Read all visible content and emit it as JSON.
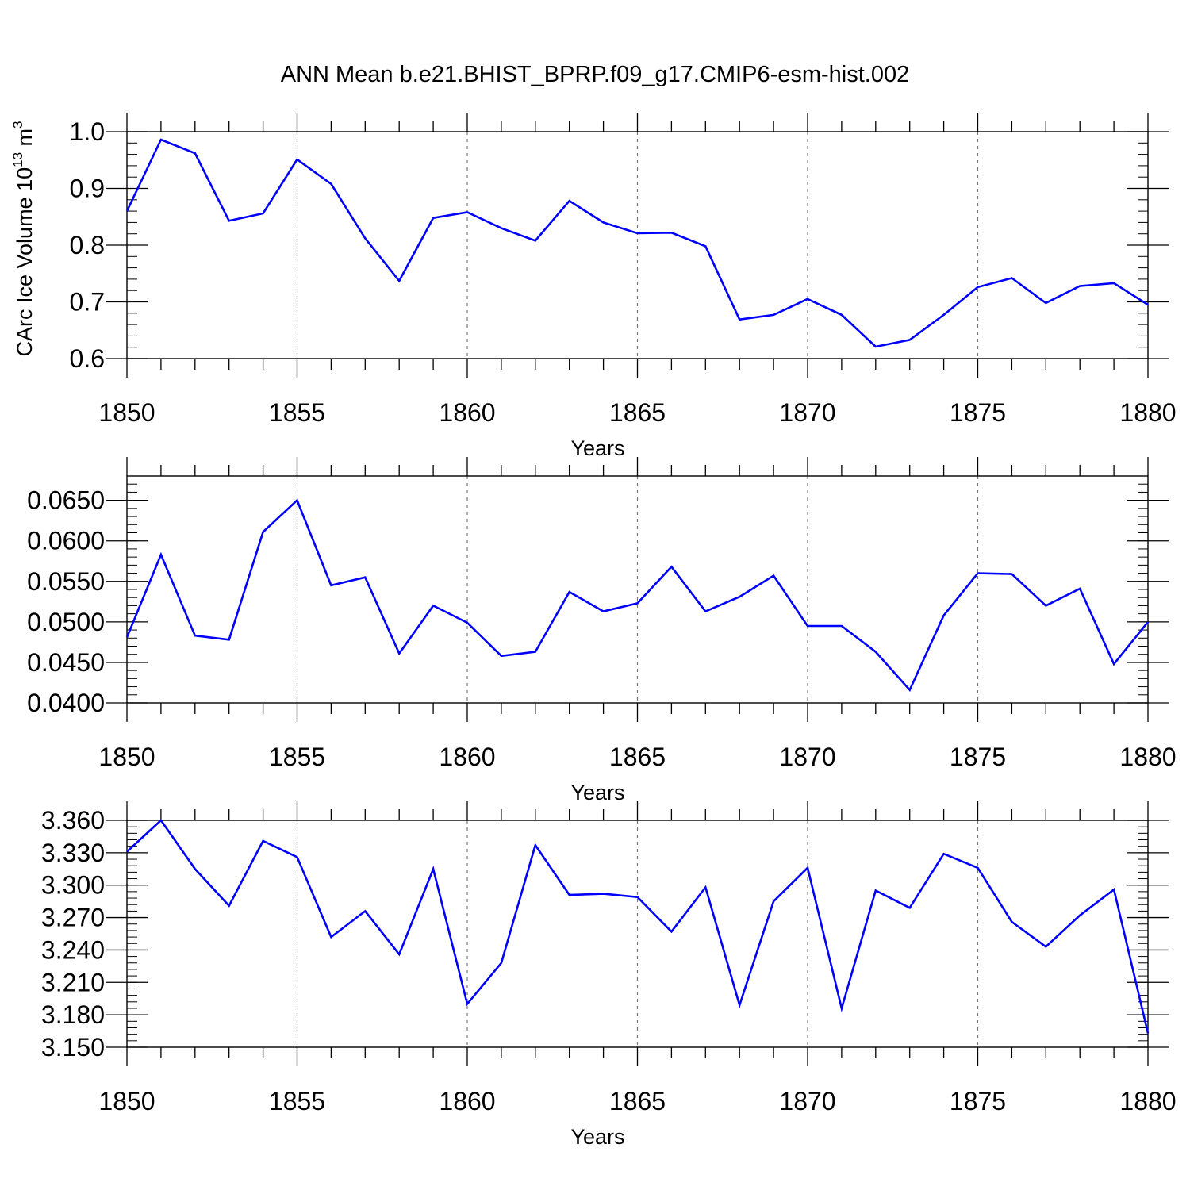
{
  "title": "ANN Mean b.e21.BHIST_BPRP.f09_g17.CMIP6-esm-hist.002",
  "chart_data": [
    {
      "type": "line",
      "title": "ANN Mean b.e21.BHIST_BPRP.f09_g17.CMIP6-esm-hist.002",
      "xlabel": "Years",
      "ylabel": "CArc Ice Volume 10",
      "ylabel_sup1": "13",
      "ylabel_mid": " m",
      "ylabel_sup2": "3",
      "xlim": [
        1850,
        1880
      ],
      "ylim": [
        0.6,
        1.0
      ],
      "xticks": [
        1850,
        1855,
        1860,
        1865,
        1870,
        1875,
        1880
      ],
      "xtick_labels": [
        "1850",
        "1855",
        "1860",
        "1865",
        "1870",
        "1875",
        "1880"
      ],
      "yticks": [
        0.6,
        0.7,
        0.8,
        0.9,
        1.0
      ],
      "ytick_labels": [
        "0.6",
        "0.7",
        "0.8",
        "0.9",
        "1.0"
      ],
      "y_minor_step": 0.02,
      "grid": "vertical dashed at major x ticks",
      "color": "#0000ff",
      "x": [
        1850,
        1851,
        1852,
        1853,
        1854,
        1855,
        1856,
        1857,
        1858,
        1859,
        1860,
        1861,
        1862,
        1863,
        1864,
        1865,
        1866,
        1867,
        1868,
        1869,
        1870,
        1871,
        1872,
        1873,
        1874,
        1875,
        1876,
        1877,
        1878,
        1879,
        1880
      ],
      "values": [
        0.86,
        0.986,
        0.962,
        0.843,
        0.856,
        0.951,
        0.908,
        0.812,
        0.737,
        0.848,
        0.858,
        0.83,
        0.808,
        0.878,
        0.84,
        0.821,
        0.822,
        0.798,
        0.669,
        0.677,
        0.705,
        0.677,
        0.621,
        0.633,
        0.677,
        0.726,
        0.742,
        0.698,
        0.728,
        0.733,
        0.695
      ]
    },
    {
      "type": "line",
      "xlabel": "Years",
      "xlim": [
        1850,
        1880
      ],
      "ylim": [
        0.04,
        0.068
      ],
      "xticks": [
        1850,
        1855,
        1860,
        1865,
        1870,
        1875,
        1880
      ],
      "xtick_labels": [
        "1850",
        "1855",
        "1860",
        "1865",
        "1870",
        "1875",
        "1880"
      ],
      "yticks": [
        0.04,
        0.045,
        0.05,
        0.055,
        0.06,
        0.065
      ],
      "ytick_labels": [
        "0.0400",
        "0.0450",
        "0.0500",
        "0.0550",
        "0.0600",
        "0.0650"
      ],
      "y_minor_step": 0.001,
      "grid": "vertical dashed at major x ticks",
      "color": "#0000ff",
      "x": [
        1850,
        1851,
        1852,
        1853,
        1854,
        1855,
        1856,
        1857,
        1858,
        1859,
        1860,
        1861,
        1862,
        1863,
        1864,
        1865,
        1866,
        1867,
        1868,
        1869,
        1870,
        1871,
        1872,
        1873,
        1874,
        1875,
        1876,
        1877,
        1878,
        1879,
        1880
      ],
      "values": [
        0.0481,
        0.0583,
        0.0483,
        0.0478,
        0.0611,
        0.065,
        0.0545,
        0.0555,
        0.0461,
        0.052,
        0.0499,
        0.0458,
        0.0463,
        0.0537,
        0.0513,
        0.0523,
        0.0568,
        0.0513,
        0.0531,
        0.0557,
        0.0495,
        0.0495,
        0.0463,
        0.0416,
        0.0508,
        0.056,
        0.0559,
        0.052,
        0.0541,
        0.0448,
        0.05
      ]
    },
    {
      "type": "line",
      "xlabel": "Years",
      "xlim": [
        1850,
        1880
      ],
      "ylim": [
        3.15,
        3.36
      ],
      "xticks": [
        1850,
        1855,
        1860,
        1865,
        1870,
        1875,
        1880
      ],
      "xtick_labels": [
        "1850",
        "1855",
        "1860",
        "1865",
        "1870",
        "1875",
        "1880"
      ],
      "yticks": [
        3.15,
        3.18,
        3.21,
        3.24,
        3.27,
        3.3,
        3.33,
        3.36
      ],
      "ytick_labels": [
        "3.150",
        "3.180",
        "3.210",
        "3.240",
        "3.270",
        "3.300",
        "3.330",
        "3.360"
      ],
      "y_minor_step": 0.006,
      "grid": "vertical dashed at major x ticks",
      "color": "#0000ff",
      "x": [
        1850,
        1851,
        1852,
        1853,
        1854,
        1855,
        1856,
        1857,
        1858,
        1859,
        1860,
        1861,
        1862,
        1863,
        1864,
        1865,
        1866,
        1867,
        1868,
        1869,
        1870,
        1871,
        1872,
        1873,
        1874,
        1875,
        1876,
        1877,
        1878,
        1879,
        1880
      ],
      "values": [
        3.331,
        3.36,
        3.315,
        3.281,
        3.341,
        3.326,
        3.252,
        3.276,
        3.236,
        3.315,
        3.19,
        3.228,
        3.337,
        3.291,
        3.292,
        3.289,
        3.257,
        3.298,
        3.189,
        3.285,
        3.316,
        3.186,
        3.295,
        3.279,
        3.329,
        3.316,
        3.266,
        3.243,
        3.272,
        3.296,
        3.163
      ]
    }
  ]
}
